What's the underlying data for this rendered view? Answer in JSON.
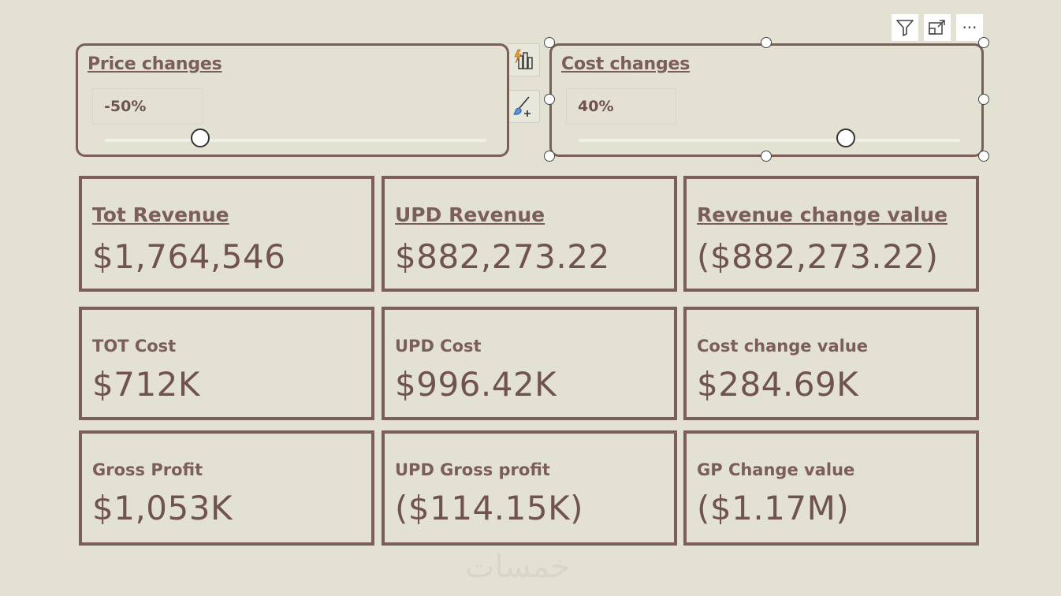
{
  "toolbar": {
    "filter_icon": "filter-icon",
    "focus_icon": "focus-mode-icon",
    "more_icon": "more-options-icon",
    "more_glyph": "···"
  },
  "side_buttons": {
    "insights_icon": "analytics-insights-icon",
    "format_icon": "format-paintbrush-icon"
  },
  "slicers": [
    {
      "title": "Price changes",
      "value": "-50%",
      "position": 0.25
    },
    {
      "title": "Cost changes",
      "value": "40%",
      "position": 0.7
    }
  ],
  "cards": [
    {
      "title": "Tot Revenue",
      "value": "$1,764,546"
    },
    {
      "title": "UPD Revenue",
      "value": "$882,273.22"
    },
    {
      "title": "Revenue change value",
      "value": "($882,273.22)"
    },
    {
      "title": "TOT Cost",
      "value": "$712K"
    },
    {
      "title": "UPD Cost",
      "value": "$996.42K"
    },
    {
      "title": "Cost change value",
      "value": "$284.69K"
    },
    {
      "title": "Gross Profit",
      "value": "$1,053K"
    },
    {
      "title": "UPD Gross profit",
      "value": "($114.15K)"
    },
    {
      "title": "GP Change value",
      "value": "($1.17M)"
    }
  ],
  "watermark": "خمسات",
  "colors": {
    "background": "#e2e1d2",
    "border": "#7b5e57",
    "text": "#6f534c"
  }
}
